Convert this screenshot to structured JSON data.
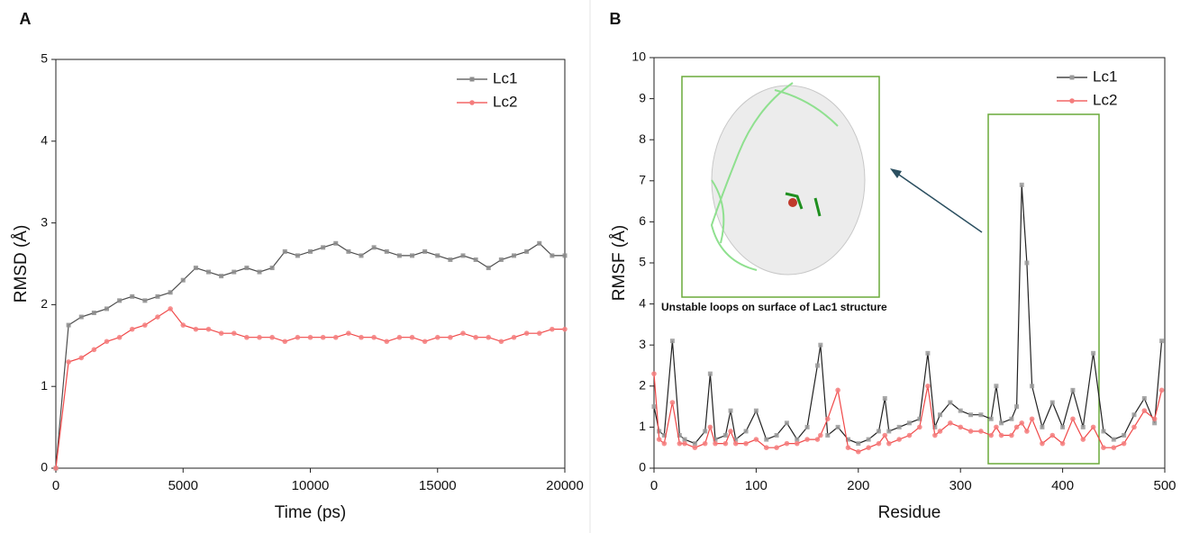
{
  "chart_data": [
    {
      "type": "line",
      "panel_label": "A",
      "xlabel": "Time (ps)",
      "ylabel": "RMSD (Å)",
      "x": [
        0,
        500,
        1000,
        1500,
        2000,
        2500,
        3000,
        3500,
        4000,
        4500,
        5000,
        5500,
        6000,
        6500,
        7000,
        7500,
        8000,
        8500,
        9000,
        9500,
        10000,
        10500,
        11000,
        11500,
        12000,
        12500,
        13000,
        13500,
        14000,
        14500,
        15000,
        15500,
        16000,
        16500,
        17000,
        17500,
        18000,
        18500,
        19000,
        19500,
        20000
      ],
      "series": [
        {
          "name": "Lc1",
          "color": "#4d4d4d",
          "marker_color": "#8c8c8c",
          "marker": "square",
          "values": [
            0,
            1.75,
            1.85,
            1.9,
            1.95,
            2.05,
            2.1,
            2.05,
            2.1,
            2.15,
            2.3,
            2.45,
            2.4,
            2.35,
            2.4,
            2.45,
            2.4,
            2.45,
            2.65,
            2.6,
            2.65,
            2.7,
            2.75,
            2.65,
            2.6,
            2.7,
            2.65,
            2.6,
            2.6,
            2.65,
            2.6,
            2.55,
            2.6,
            2.55,
            2.45,
            2.55,
            2.6,
            2.65,
            2.75,
            2.6,
            2.6
          ]
        },
        {
          "name": "Lc2",
          "color": "#f04848",
          "marker_color": "#f47c7c",
          "marker": "circle",
          "values": [
            0,
            1.3,
            1.35,
            1.45,
            1.55,
            1.6,
            1.7,
            1.75,
            1.85,
            1.95,
            1.75,
            1.7,
            1.7,
            1.65,
            1.65,
            1.6,
            1.6,
            1.6,
            1.55,
            1.6,
            1.6,
            1.6,
            1.6,
            1.65,
            1.6,
            1.6,
            1.55,
            1.6,
            1.6,
            1.55,
            1.6,
            1.6,
            1.65,
            1.6,
            1.6,
            1.55,
            1.6,
            1.65,
            1.65,
            1.7,
            1.7
          ]
        }
      ],
      "xlim": [
        0,
        20000
      ],
      "xticks": [
        0,
        5000,
        10000,
        15000,
        20000
      ],
      "ylim": [
        0,
        5
      ],
      "yticks": [
        0,
        1,
        2,
        3,
        4,
        5
      ],
      "legend": "upper right"
    },
    {
      "type": "line",
      "panel_label": "B",
      "xlabel": "Residue",
      "ylabel": "RMSF (Å)",
      "annotation": "Unstable loops on surface of Lac1 structure",
      "x": [
        0,
        5,
        10,
        18,
        25,
        30,
        40,
        50,
        55,
        60,
        70,
        75,
        80,
        90,
        100,
        110,
        120,
        130,
        140,
        150,
        160,
        163,
        170,
        180,
        190,
        200,
        210,
        220,
        226,
        230,
        240,
        250,
        260,
        268,
        275,
        280,
        290,
        300,
        310,
        320,
        330,
        335,
        340,
        350,
        355,
        360,
        365,
        370,
        380,
        390,
        400,
        410,
        420,
        430,
        440,
        450,
        460,
        470,
        480,
        490,
        497
      ],
      "series": [
        {
          "name": "Lc1",
          "color": "#222222",
          "marker_color": "#9a9a9a",
          "marker": "square",
          "values": [
            1.5,
            0.9,
            0.8,
            3.1,
            0.8,
            0.7,
            0.6,
            0.9,
            2.3,
            0.7,
            0.8,
            1.4,
            0.7,
            0.9,
            1.4,
            0.7,
            0.8,
            1.1,
            0.7,
            1.0,
            2.5,
            3.0,
            0.8,
            1.0,
            0.7,
            0.6,
            0.7,
            0.9,
            1.7,
            0.9,
            1.0,
            1.1,
            1.2,
            2.8,
            1.0,
            1.3,
            1.6,
            1.4,
            1.3,
            1.3,
            1.2,
            2.0,
            1.1,
            1.2,
            1.5,
            6.9,
            5.0,
            2.0,
            1.0,
            1.6,
            1.0,
            1.9,
            1.0,
            2.8,
            0.9,
            0.7,
            0.8,
            1.3,
            1.7,
            1.1,
            3.1
          ]
        },
        {
          "name": "Lc2",
          "color": "#f04848",
          "marker_color": "#f47c7c",
          "marker": "circle",
          "values": [
            2.3,
            0.7,
            0.6,
            1.6,
            0.6,
            0.6,
            0.5,
            0.6,
            1.0,
            0.6,
            0.6,
            0.9,
            0.6,
            0.6,
            0.7,
            0.5,
            0.5,
            0.6,
            0.6,
            0.7,
            0.7,
            0.8,
            1.2,
            1.9,
            0.5,
            0.4,
            0.5,
            0.6,
            0.8,
            0.6,
            0.7,
            0.8,
            1.0,
            2.0,
            0.8,
            0.9,
            1.1,
            1.0,
            0.9,
            0.9,
            0.8,
            1.0,
            0.8,
            0.8,
            1.0,
            1.1,
            0.9,
            1.2,
            0.6,
            0.8,
            0.6,
            1.2,
            0.7,
            1.0,
            0.5,
            0.5,
            0.6,
            1.0,
            1.4,
            1.2,
            1.9
          ]
        }
      ],
      "xlim": [
        0,
        500
      ],
      "xticks": [
        0,
        100,
        200,
        300,
        400,
        500
      ],
      "ylim": [
        0,
        10
      ],
      "yticks": [
        0,
        1,
        2,
        3,
        4,
        5,
        6,
        7,
        8,
        9,
        10
      ],
      "legend": "upper right"
    }
  ]
}
